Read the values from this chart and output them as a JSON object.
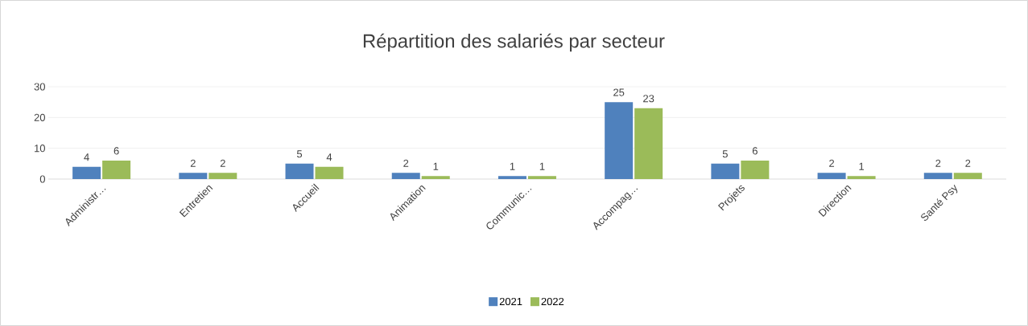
{
  "chart_data": {
    "type": "bar",
    "title": "Répartition des salariés par secteur",
    "categories": [
      "Administr…",
      "Entretien",
      "Accueil",
      "Animation",
      "Communic…",
      "Accompag…",
      "Projets",
      "Direction",
      "Santé Psy"
    ],
    "series": [
      {
        "name": "2021",
        "color": "#4f81bd",
        "values": [
          4,
          2,
          5,
          2,
          1,
          25,
          5,
          2,
          2
        ]
      },
      {
        "name": "2022",
        "color": "#9bbb59",
        "values": [
          6,
          2,
          4,
          1,
          1,
          23,
          6,
          1,
          2
        ]
      }
    ],
    "ylim": [
      0,
      30
    ],
    "yticks": [
      0,
      10,
      20,
      30
    ],
    "grid": "y",
    "legend": "bottom",
    "data_labels": true
  }
}
